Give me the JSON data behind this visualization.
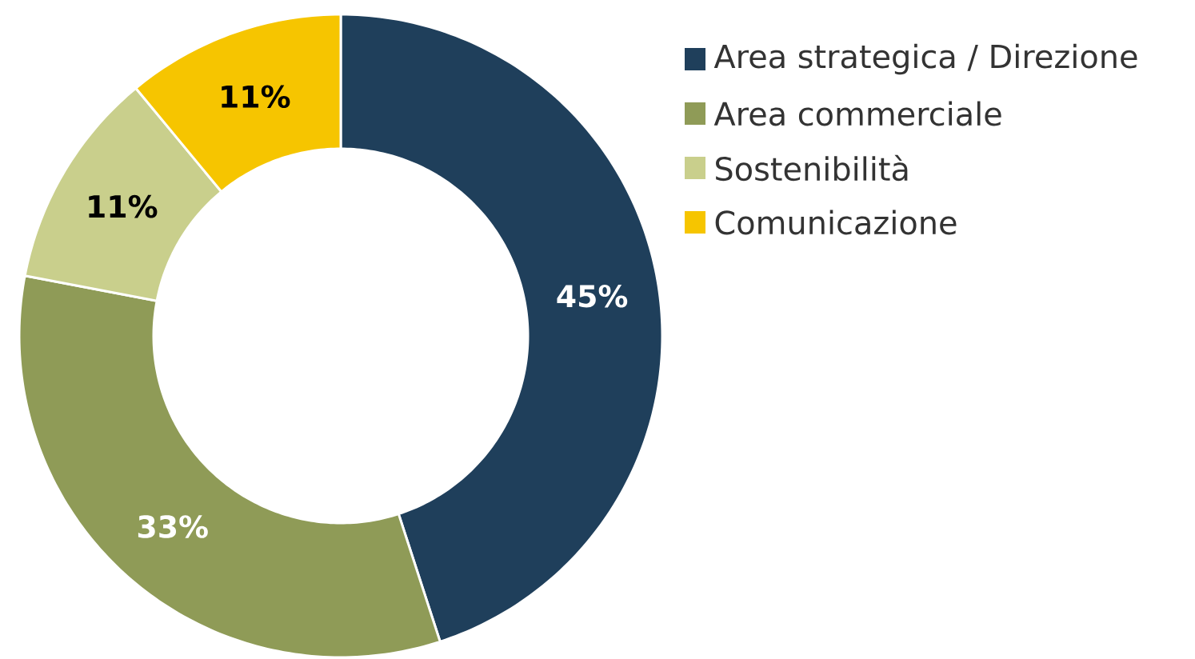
{
  "chart_data": {
    "type": "donut",
    "categories": [
      "Area strategica / Direzione",
      "Area commerciale",
      "Sostenibilità",
      "Comunicazione"
    ],
    "values": [
      45,
      33,
      11,
      11
    ],
    "value_labels": [
      "45%",
      "33%",
      "11%",
      "11%"
    ],
    "colors": [
      "#1f3f5b",
      "#8f9b57",
      "#c9cf8c",
      "#f6c500"
    ],
    "legend": "right"
  }
}
